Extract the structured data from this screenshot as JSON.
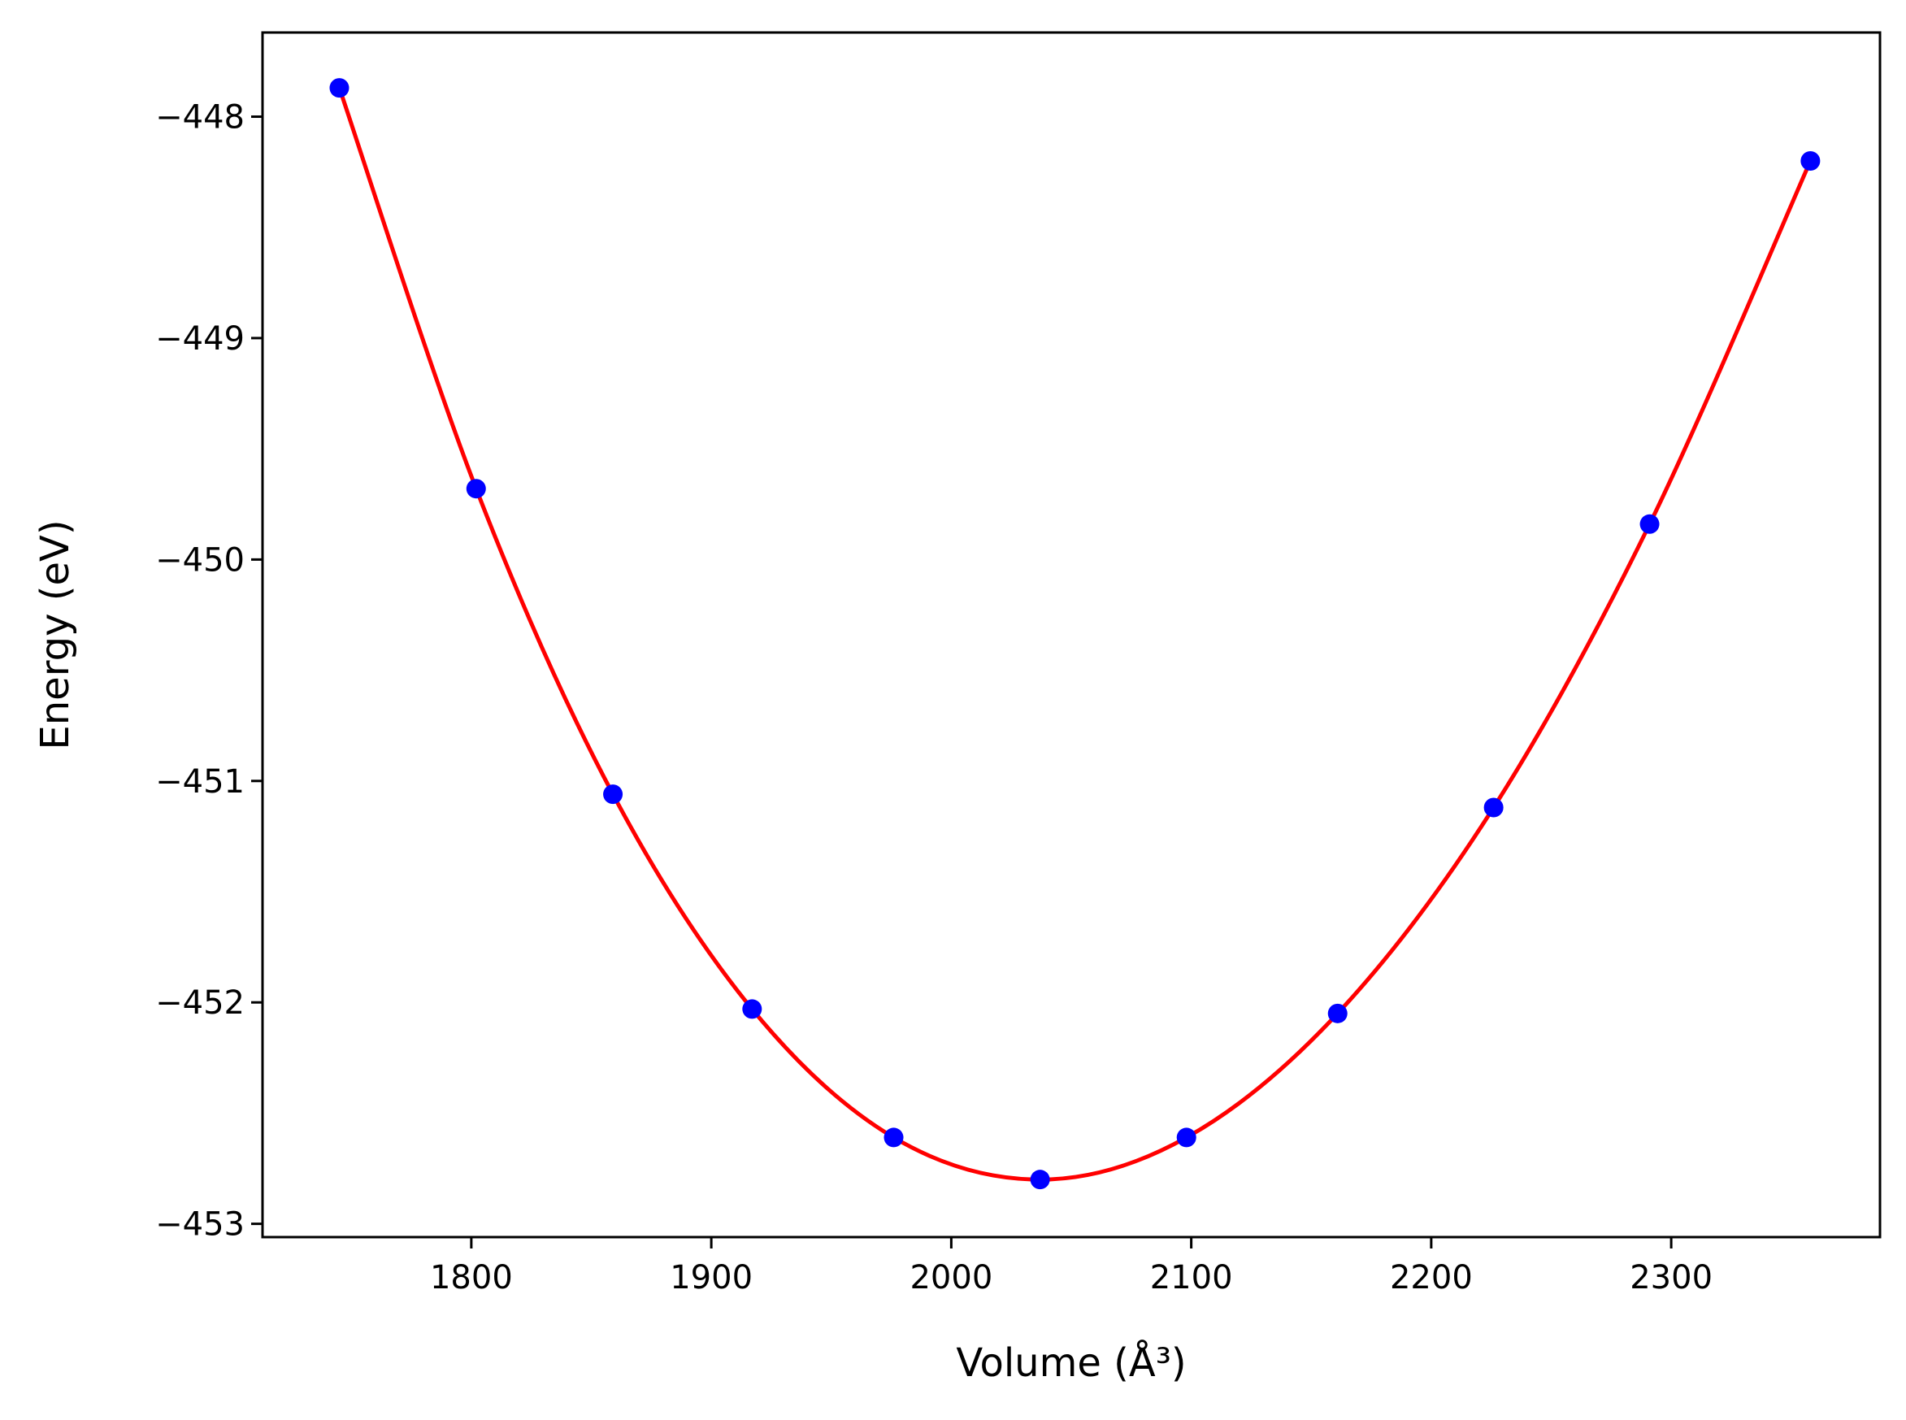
{
  "chart_data": {
    "type": "scatter",
    "title": "",
    "xlabel": "Volume (Å³)",
    "ylabel": "Energy (eV)",
    "xlim": [
      1713,
      2387
    ],
    "ylim": [
      -453.06,
      -447.62
    ],
    "xticks": [
      1800,
      1900,
      2000,
      2100,
      2200,
      2300
    ],
    "yticks": [
      -448,
      -449,
      -450,
      -451,
      -452,
      -453
    ],
    "xtick_labels": [
      "1800",
      "1900",
      "2000",
      "2100",
      "2200",
      "2300"
    ],
    "ytick_labels": [
      "−448",
      "−449",
      "−450",
      "−451",
      "−452",
      "−453"
    ],
    "grid": false,
    "series": [
      {
        "kind": "points",
        "color": "#0000ff",
        "x": [
          1745,
          1802,
          1859,
          1917,
          1976,
          2037,
          2098,
          2161,
          2226,
          2291,
          2358
        ],
        "y": [
          -447.87,
          -449.68,
          -451.06,
          -452.03,
          -452.61,
          -452.8,
          -452.61,
          -452.05,
          -451.12,
          -449.84,
          -448.2
        ]
      },
      {
        "kind": "fit-line",
        "color": "#ff0000",
        "x": [
          1745,
          1802,
          1859,
          1917,
          1976,
          2037,
          2098,
          2161,
          2226,
          2291,
          2358
        ],
        "y": [
          -447.87,
          -449.68,
          -451.06,
          -452.03,
          -452.61,
          -452.8,
          -452.61,
          -452.05,
          -451.12,
          -449.84,
          -448.2
        ]
      }
    ]
  }
}
